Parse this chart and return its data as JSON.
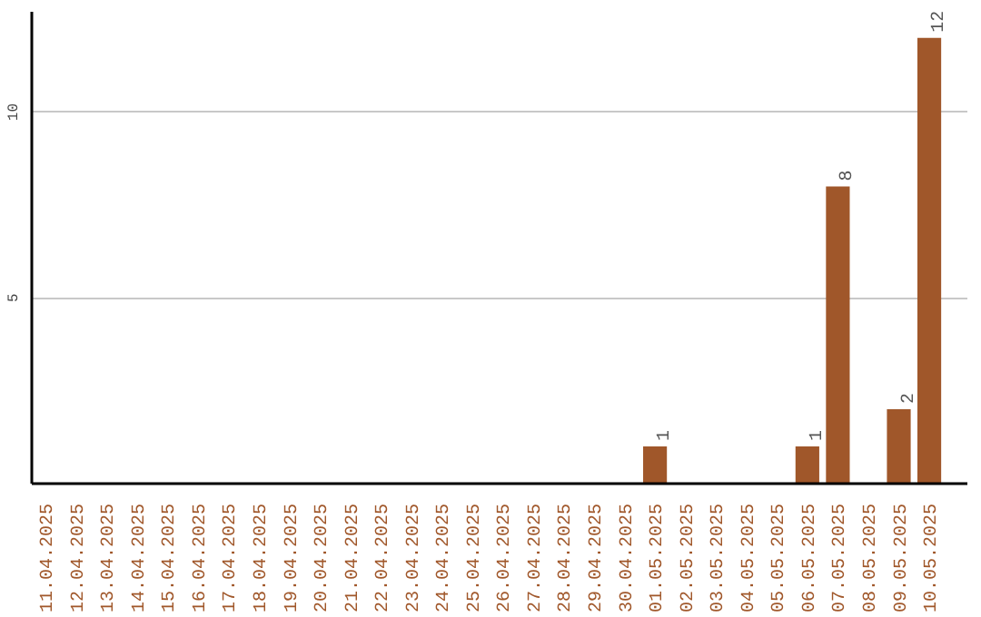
{
  "chart_data": {
    "type": "bar",
    "categories": [
      "11.04.2025",
      "12.04.2025",
      "13.04.2025",
      "14.04.2025",
      "15.04.2025",
      "16.04.2025",
      "17.04.2025",
      "18.04.2025",
      "19.04.2025",
      "20.04.2025",
      "21.04.2025",
      "22.04.2025",
      "23.04.2025",
      "24.04.2025",
      "25.04.2025",
      "26.04.2025",
      "27.04.2025",
      "28.04.2025",
      "29.04.2025",
      "30.04.2025",
      "01.05.2025",
      "02.05.2025",
      "03.05.2025",
      "04.05.2025",
      "05.05.2025",
      "06.05.2025",
      "07.05.2025",
      "08.05.2025",
      "09.05.2025",
      "10.05.2025"
    ],
    "values": [
      null,
      null,
      null,
      null,
      null,
      null,
      null,
      null,
      null,
      null,
      null,
      null,
      null,
      null,
      null,
      null,
      null,
      null,
      null,
      null,
      1,
      null,
      null,
      null,
      null,
      1,
      8,
      null,
      2,
      12
    ],
    "color": "#a0572a",
    "ylim": [
      0,
      12.7
    ],
    "yticks": [
      5,
      10
    ],
    "grid": "y",
    "data_labels": true
  }
}
